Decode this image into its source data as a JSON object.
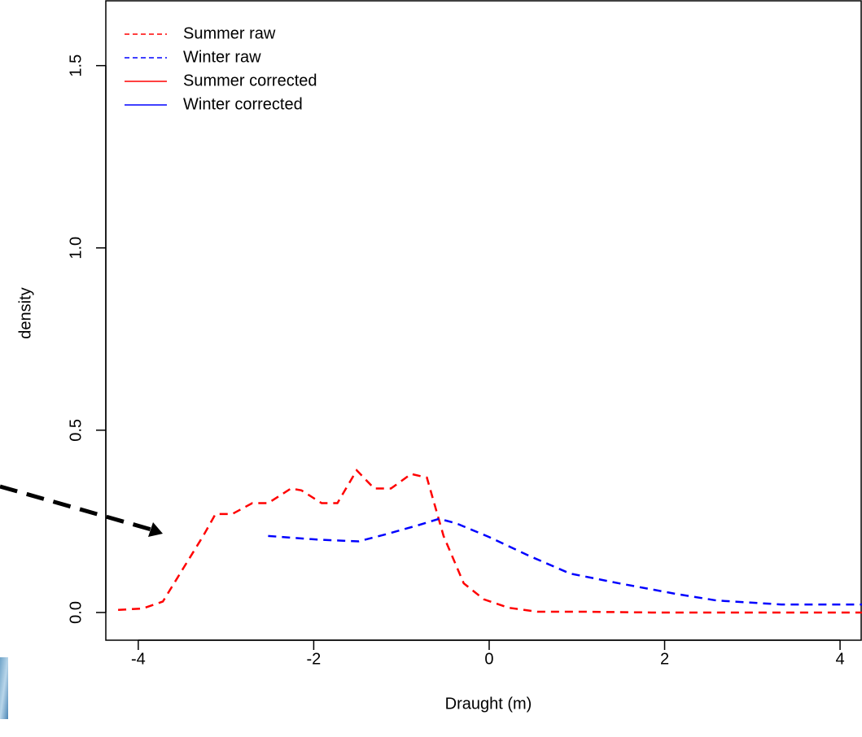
{
  "chart_data": {
    "type": "line",
    "xlabel": "Draught (m)",
    "ylabel": "density",
    "xlim": [
      -4.37,
      4.25
    ],
    "ylim": [
      -0.076,
      1.68
    ],
    "xticks": [
      -4,
      -2,
      0,
      2,
      4
    ],
    "yticks": [
      {
        "value": 0,
        "label": "0.0"
      },
      0.5,
      {
        "value": 1,
        "label": "1.0"
      },
      1.5
    ],
    "legend": "top-left",
    "series": [
      {
        "name": "Summer raw",
        "color": "#ff0000",
        "dashed": true,
        "x": [
          -4.23,
          -3.95,
          -3.72,
          -3.49,
          -3.26,
          -3.12,
          -2.93,
          -2.7,
          -2.52,
          -2.26,
          -2.14,
          -1.91,
          -1.73,
          -1.51,
          -1.31,
          -1.12,
          -0.89,
          -0.71,
          -0.52,
          -0.29,
          -0.06,
          0.22,
          0.55,
          1.1,
          1.85,
          4.25
        ],
        "values": [
          0.007,
          0.011,
          0.03,
          0.12,
          0.21,
          0.27,
          0.27,
          0.3,
          0.3,
          0.34,
          0.335,
          0.3,
          0.3,
          0.39,
          0.34,
          0.34,
          0.38,
          0.37,
          0.21,
          0.08,
          0.036,
          0.013,
          0.002,
          0.002,
          0,
          0
        ]
      },
      {
        "name": "Winter raw",
        "color": "#0000ff",
        "dashed": true,
        "x": [
          -2.52,
          -1.96,
          -1.49,
          -1.17,
          -0.8,
          -0.57,
          -0.38,
          -0.01,
          0.45,
          0.92,
          1.48,
          2.13,
          2.59,
          3.33,
          4.25
        ],
        "values": [
          0.21,
          0.2,
          0.195,
          0.215,
          0.24,
          0.257,
          0.245,
          0.208,
          0.156,
          0.107,
          0.08,
          0.051,
          0.033,
          0.022,
          0.022
        ]
      },
      {
        "name": "Summer corrected",
        "color": "#ff0000",
        "dashed": false,
        "x": [],
        "values": []
      },
      {
        "name": "Winter corrected",
        "color": "#0000ff",
        "dashed": false,
        "x": [],
        "values": []
      }
    ]
  }
}
